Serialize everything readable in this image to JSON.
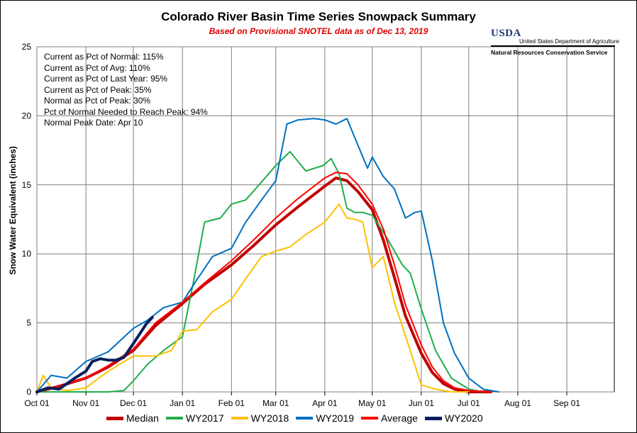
{
  "chart_data": {
    "type": "line",
    "title": "Colorado River Basin Time Series Snowpack Summary",
    "subtitle": "Based on Provisional SNOTEL data as of Dec 13, 2019",
    "xlabel": "",
    "ylabel": "Snow Water Equivalent (inches)",
    "ylim": [
      0,
      25
    ],
    "yticks": [
      "0",
      "5",
      "10",
      "15",
      "20",
      "25"
    ],
    "xticks": [
      "Oct 01",
      "Nov 01",
      "Dec 01",
      "Jan 01",
      "Feb 01",
      "Mar 01",
      "Apr 01",
      "May 01",
      "Jun 01",
      "Jul 01",
      "Aug 01",
      "Sep 01"
    ],
    "grid": true,
    "legend": "bottom",
    "stats": [
      "Current  as Pct of Normal: 115%",
      "Current  as Pct of Avg: 110%",
      "Current  as Pct of Last Year: 95%",
      "Current  as Pct of Peak: 35%",
      "Normal  as Pct of Peak: 30%",
      "Pct of Normal Needed  to Reach Peak: 94%",
      "Normal  Peak Date: Apr 10"
    ],
    "series": [
      {
        "name": "Median",
        "color": "#c00000",
        "width": 4,
        "x": [
          "Oct 01",
          "Oct 15",
          "Nov 01",
          "Nov 15",
          "Dec 01",
          "Dec 15",
          "Jan 01",
          "Jan 15",
          "Feb 01",
          "Feb 15",
          "Mar 01",
          "Mar 15",
          "Apr 01",
          "Apr 08",
          "Apr 15",
          "Apr 22",
          "May 01",
          "May 08",
          "May 15",
          "May 22",
          "Jun 01",
          "Jun 08",
          "Jun 15",
          "Jun 22",
          "Jul 01",
          "Jul 15"
        ],
        "y": [
          0,
          0.4,
          1.0,
          1.8,
          3.0,
          4.8,
          6.4,
          7.8,
          9.2,
          10.6,
          12.1,
          13.4,
          14.9,
          15.5,
          15.3,
          14.5,
          13.2,
          11.0,
          8.3,
          5.5,
          2.8,
          1.4,
          0.6,
          0.2,
          0,
          0
        ]
      },
      {
        "name": "WY2017",
        "color": "#1fae4b",
        "width": 2,
        "x": [
          "Oct 01",
          "Oct 15",
          "Nov 01",
          "Nov 15",
          "Nov 25",
          "Dec 01",
          "Dec 10",
          "Dec 20",
          "Jan 01",
          "Jan 08",
          "Jan 15",
          "Jan 25",
          "Feb 01",
          "Feb 10",
          "Feb 20",
          "Mar 01",
          "Mar 10",
          "Mar 20",
          "Mar 31",
          "Apr 05",
          "Apr 10",
          "Apr 15",
          "Apr 20",
          "Apr 25",
          "May 01",
          "May 10",
          "May 20",
          "May 25",
          "Jun 01",
          "Jun 10",
          "Jun 20",
          "Jul 01",
          "Jul 10"
        ],
        "y": [
          0,
          0,
          0,
          0,
          0.1,
          0.8,
          2.0,
          3.0,
          4.0,
          8.0,
          12.3,
          12.6,
          13.6,
          13.9,
          15.2,
          16.4,
          17.4,
          16.0,
          16.4,
          16.9,
          15.8,
          13.3,
          13.0,
          13.0,
          12.8,
          11.2,
          9.2,
          8.6,
          6.0,
          3.0,
          1.0,
          0.2,
          0
        ]
      },
      {
        "name": "WY2018",
        "color": "#ffc000",
        "width": 2,
        "x": [
          "Oct 01",
          "Oct 05",
          "Oct 10",
          "Oct 20",
          "Nov 01",
          "Nov 15",
          "Dec 01",
          "Dec 15",
          "Dec 25",
          "Jan 01",
          "Jan 10",
          "Jan 20",
          "Feb 01",
          "Feb 10",
          "Feb 20",
          "Mar 01",
          "Mar 10",
          "Mar 20",
          "Apr 01",
          "Apr 10",
          "Apr 15",
          "Apr 20",
          "Apr 25",
          "May 01",
          "May 08",
          "May 15",
          "May 25",
          "Jun 01",
          "Jun 10",
          "Jun 20",
          "Jul 01"
        ],
        "y": [
          0,
          1.2,
          0.3,
          0.1,
          0.3,
          1.5,
          2.6,
          2.6,
          3.0,
          4.4,
          4.5,
          5.8,
          6.7,
          8.2,
          9.8,
          10.2,
          10.5,
          11.4,
          12.3,
          13.6,
          12.6,
          12.5,
          12.3,
          9.0,
          9.8,
          6.5,
          3.0,
          0.5,
          0.2,
          0,
          0
        ]
      },
      {
        "name": "WY2019",
        "color": "#0070c0",
        "width": 2,
        "x": [
          "Oct 01",
          "Oct 10",
          "Oct 20",
          "Nov 01",
          "Nov 15",
          "Dec 01",
          "Dec 10",
          "Dec 20",
          "Jan 01",
          "Jan 10",
          "Jan 20",
          "Feb 01",
          "Feb 10",
          "Feb 20",
          "Mar 01",
          "Mar 08",
          "Mar 15",
          "Mar 25",
          "Apr 01",
          "Apr 08",
          "Apr 15",
          "Apr 20",
          "Apr 28",
          "May 01",
          "May 08",
          "May 15",
          "May 22",
          "May 28",
          "Jun 01",
          "Jun 08",
          "Jun 15",
          "Jun 22",
          "Jul 01",
          "Jul 10",
          "Jul 20"
        ],
        "y": [
          0,
          1.2,
          1.0,
          2.2,
          2.9,
          4.6,
          5.2,
          6.1,
          6.5,
          8.1,
          9.8,
          10.4,
          12.3,
          13.9,
          15.3,
          19.4,
          19.7,
          19.8,
          19.7,
          19.4,
          19.8,
          18.4,
          16.2,
          17.0,
          15.6,
          14.7,
          12.6,
          13.0,
          13.1,
          9.5,
          5.0,
          2.8,
          1.0,
          0.2,
          0
        ]
      },
      {
        "name": "Average",
        "color": "#ff0000",
        "width": 2,
        "x": [
          "Oct 01",
          "Oct 15",
          "Nov 01",
          "Nov 15",
          "Dec 01",
          "Dec 15",
          "Jan 01",
          "Jan 15",
          "Feb 01",
          "Feb 15",
          "Mar 01",
          "Mar 15",
          "Apr 01",
          "Apr 08",
          "Apr 15",
          "Apr 22",
          "May 01",
          "May 08",
          "May 15",
          "May 22",
          "Jun 01",
          "Jun 08",
          "Jun 15",
          "Jun 22",
          "Jul 01",
          "Jul 15"
        ],
        "y": [
          0,
          0.4,
          1.0,
          1.9,
          3.1,
          5.0,
          6.5,
          7.9,
          9.5,
          11.0,
          12.6,
          14.0,
          15.5,
          15.9,
          15.8,
          15.0,
          13.6,
          11.8,
          9.2,
          6.3,
          3.4,
          1.8,
          0.8,
          0.3,
          0.1,
          0
        ]
      },
      {
        "name": "WY2020",
        "color": "#0a1f5c",
        "width": 4,
        "x": [
          "Oct 01",
          "Oct 08",
          "Oct 15",
          "Oct 20",
          "Oct 25",
          "Nov 01",
          "Nov 05",
          "Nov 10",
          "Nov 15",
          "Nov 20",
          "Nov 25",
          "Dec 01",
          "Dec 05",
          "Dec 09",
          "Dec 13"
        ],
        "y": [
          0,
          0.3,
          0.2,
          0.6,
          1.0,
          1.5,
          2.2,
          2.4,
          2.3,
          2.3,
          2.5,
          3.5,
          4.2,
          4.9,
          5.4
        ]
      }
    ]
  }
}
